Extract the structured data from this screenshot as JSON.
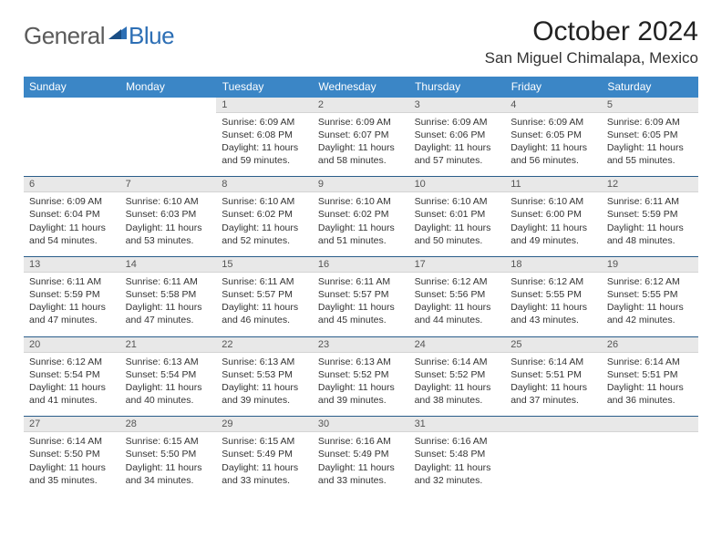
{
  "brand": {
    "word1": "General",
    "word2": "Blue"
  },
  "title": "October 2024",
  "location": "San Miguel Chimalapa, Mexico",
  "colors": {
    "header_bg": "#3b86c6",
    "rule": "#2a5d8a",
    "daynum_bg": "#e8e8e8",
    "logo_blue": "#2d6fb5"
  },
  "weekdays": [
    "Sunday",
    "Monday",
    "Tuesday",
    "Wednesday",
    "Thursday",
    "Friday",
    "Saturday"
  ],
  "weeks": [
    [
      null,
      null,
      {
        "n": "1",
        "sr": "6:09 AM",
        "ss": "6:08 PM",
        "dl": "11 hours and 59 minutes."
      },
      {
        "n": "2",
        "sr": "6:09 AM",
        "ss": "6:07 PM",
        "dl": "11 hours and 58 minutes."
      },
      {
        "n": "3",
        "sr": "6:09 AM",
        "ss": "6:06 PM",
        "dl": "11 hours and 57 minutes."
      },
      {
        "n": "4",
        "sr": "6:09 AM",
        "ss": "6:05 PM",
        "dl": "11 hours and 56 minutes."
      },
      {
        "n": "5",
        "sr": "6:09 AM",
        "ss": "6:05 PM",
        "dl": "11 hours and 55 minutes."
      }
    ],
    [
      {
        "n": "6",
        "sr": "6:09 AM",
        "ss": "6:04 PM",
        "dl": "11 hours and 54 minutes."
      },
      {
        "n": "7",
        "sr": "6:10 AM",
        "ss": "6:03 PM",
        "dl": "11 hours and 53 minutes."
      },
      {
        "n": "8",
        "sr": "6:10 AM",
        "ss": "6:02 PM",
        "dl": "11 hours and 52 minutes."
      },
      {
        "n": "9",
        "sr": "6:10 AM",
        "ss": "6:02 PM",
        "dl": "11 hours and 51 minutes."
      },
      {
        "n": "10",
        "sr": "6:10 AM",
        "ss": "6:01 PM",
        "dl": "11 hours and 50 minutes."
      },
      {
        "n": "11",
        "sr": "6:10 AM",
        "ss": "6:00 PM",
        "dl": "11 hours and 49 minutes."
      },
      {
        "n": "12",
        "sr": "6:11 AM",
        "ss": "5:59 PM",
        "dl": "11 hours and 48 minutes."
      }
    ],
    [
      {
        "n": "13",
        "sr": "6:11 AM",
        "ss": "5:59 PM",
        "dl": "11 hours and 47 minutes."
      },
      {
        "n": "14",
        "sr": "6:11 AM",
        "ss": "5:58 PM",
        "dl": "11 hours and 47 minutes."
      },
      {
        "n": "15",
        "sr": "6:11 AM",
        "ss": "5:57 PM",
        "dl": "11 hours and 46 minutes."
      },
      {
        "n": "16",
        "sr": "6:11 AM",
        "ss": "5:57 PM",
        "dl": "11 hours and 45 minutes."
      },
      {
        "n": "17",
        "sr": "6:12 AM",
        "ss": "5:56 PM",
        "dl": "11 hours and 44 minutes."
      },
      {
        "n": "18",
        "sr": "6:12 AM",
        "ss": "5:55 PM",
        "dl": "11 hours and 43 minutes."
      },
      {
        "n": "19",
        "sr": "6:12 AM",
        "ss": "5:55 PM",
        "dl": "11 hours and 42 minutes."
      }
    ],
    [
      {
        "n": "20",
        "sr": "6:12 AM",
        "ss": "5:54 PM",
        "dl": "11 hours and 41 minutes."
      },
      {
        "n": "21",
        "sr": "6:13 AM",
        "ss": "5:54 PM",
        "dl": "11 hours and 40 minutes."
      },
      {
        "n": "22",
        "sr": "6:13 AM",
        "ss": "5:53 PM",
        "dl": "11 hours and 39 minutes."
      },
      {
        "n": "23",
        "sr": "6:13 AM",
        "ss": "5:52 PM",
        "dl": "11 hours and 39 minutes."
      },
      {
        "n": "24",
        "sr": "6:14 AM",
        "ss": "5:52 PM",
        "dl": "11 hours and 38 minutes."
      },
      {
        "n": "25",
        "sr": "6:14 AM",
        "ss": "5:51 PM",
        "dl": "11 hours and 37 minutes."
      },
      {
        "n": "26",
        "sr": "6:14 AM",
        "ss": "5:51 PM",
        "dl": "11 hours and 36 minutes."
      }
    ],
    [
      {
        "n": "27",
        "sr": "6:14 AM",
        "ss": "5:50 PM",
        "dl": "11 hours and 35 minutes."
      },
      {
        "n": "28",
        "sr": "6:15 AM",
        "ss": "5:50 PM",
        "dl": "11 hours and 34 minutes."
      },
      {
        "n": "29",
        "sr": "6:15 AM",
        "ss": "5:49 PM",
        "dl": "11 hours and 33 minutes."
      },
      {
        "n": "30",
        "sr": "6:16 AM",
        "ss": "5:49 PM",
        "dl": "11 hours and 33 minutes."
      },
      {
        "n": "31",
        "sr": "6:16 AM",
        "ss": "5:48 PM",
        "dl": "11 hours and 32 minutes."
      },
      null,
      null
    ]
  ],
  "labels": {
    "sunrise": "Sunrise:",
    "sunset": "Sunset:",
    "daylight": "Daylight:"
  }
}
